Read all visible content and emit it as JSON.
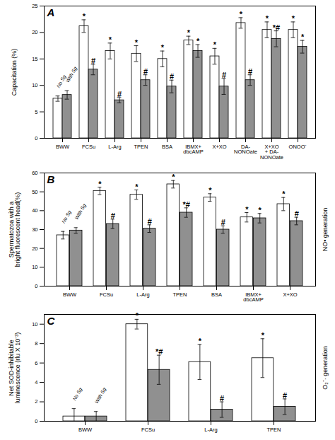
{
  "chart_data": [
    {
      "type": "bar",
      "title": "A",
      "ylabel": "Capacitation (%)",
      "categories": [
        "BWW",
        "FCSu",
        "L-Arg",
        "TPEN",
        "BSA",
        "IBMX+\ndbcAMP",
        "X+XO",
        "DA-\nNONOate",
        "X+XO\n+ DA-\nNONOate",
        "ONOO⁻"
      ],
      "series": [
        {
          "name": "No Sg",
          "color": "#ffffff",
          "values": [
            7.5,
            21.2,
            16.5,
            16.0,
            15.0,
            18.5,
            15.5,
            21.8,
            20.5,
            20.5
          ],
          "errors": [
            0.5,
            1.2,
            1.5,
            1.5,
            1.5,
            0.8,
            1.5,
            1.0,
            1.5,
            1.5
          ],
          "significance": [
            null,
            "*",
            "*",
            "*",
            "*",
            "*",
            "*",
            "*",
            "*",
            "*"
          ]
        },
        {
          "name": "With Sg",
          "color": "#909090",
          "values": [
            8.2,
            13.0,
            7.2,
            11.0,
            9.8,
            16.5,
            9.8,
            11.0,
            18.8,
            17.3
          ],
          "errors": [
            0.8,
            1.0,
            0.5,
            1.0,
            1.2,
            1.2,
            1.5,
            1.0,
            1.5,
            1.2
          ],
          "significance": [
            null,
            "#",
            "#",
            "#",
            "#",
            "*",
            "#",
            "#",
            "*#",
            "*"
          ]
        }
      ],
      "ylim": [
        0,
        25
      ],
      "yticks": [
        0,
        5,
        10,
        15,
        20,
        25
      ],
      "grid": false
    },
    {
      "type": "bar",
      "title": "B",
      "ylabel": "Spermatozoa with a\nbright fluorescent head(%)",
      "annotations": [
        "NO• generation"
      ],
      "categories": [
        "BWW",
        "FCSu",
        "L-Arg",
        "TPEN",
        "BSA",
        "IBMX+\ndbcAMP",
        "X+XO"
      ],
      "series": [
        {
          "name": "No Sg",
          "color": "#ffffff",
          "values": [
            27.0,
            50.5,
            48.5,
            54.0,
            47.0,
            36.5,
            43.5
          ],
          "errors": [
            2.0,
            2.0,
            2.5,
            2.0,
            2.0,
            2.5,
            3.5
          ],
          "significance": [
            null,
            "*",
            "*",
            "*",
            "*",
            "*",
            "*"
          ]
        },
        {
          "name": "With Sg",
          "color": "#909090",
          "values": [
            29.5,
            33.0,
            30.5,
            39.0,
            30.0,
            36.0,
            34.5
          ],
          "errors": [
            1.5,
            2.5,
            2.0,
            2.5,
            2.0,
            2.5,
            2.0
          ],
          "significance": [
            null,
            "#",
            "#",
            "*#",
            "#",
            "*",
            "#"
          ]
        }
      ],
      "ylim": [
        0,
        60
      ],
      "yticks": [
        0,
        10,
        20,
        30,
        40,
        50,
        60
      ],
      "grid": false
    },
    {
      "type": "bar",
      "title": "C",
      "ylabel": "Net SOD-inhibitable\nluminescence (rlu X 10⁻³)",
      "annotations": [
        "O₂⁻· generation"
      ],
      "categories": [
        "BWW",
        "FCSu",
        "L-Arg",
        "TPEN"
      ],
      "series": [
        {
          "name": "No Sg",
          "color": "#ffffff",
          "values": [
            0.5,
            10.0,
            6.1,
            6.5
          ],
          "errors": [
            0.8,
            0.5,
            1.8,
            2.0
          ],
          "significance": [
            null,
            "*",
            "*",
            "*"
          ]
        },
        {
          "name": "With Sg",
          "color": "#909090",
          "values": [
            0.5,
            5.3,
            1.2,
            1.5
          ],
          "errors": [
            0.5,
            1.5,
            0.8,
            0.8
          ],
          "significance": [
            null,
            "*#",
            "#",
            "#"
          ]
        }
      ],
      "ylim": [
        0,
        11
      ],
      "yticks": [
        0,
        2,
        4,
        6,
        8,
        10
      ],
      "grid": false
    }
  ]
}
